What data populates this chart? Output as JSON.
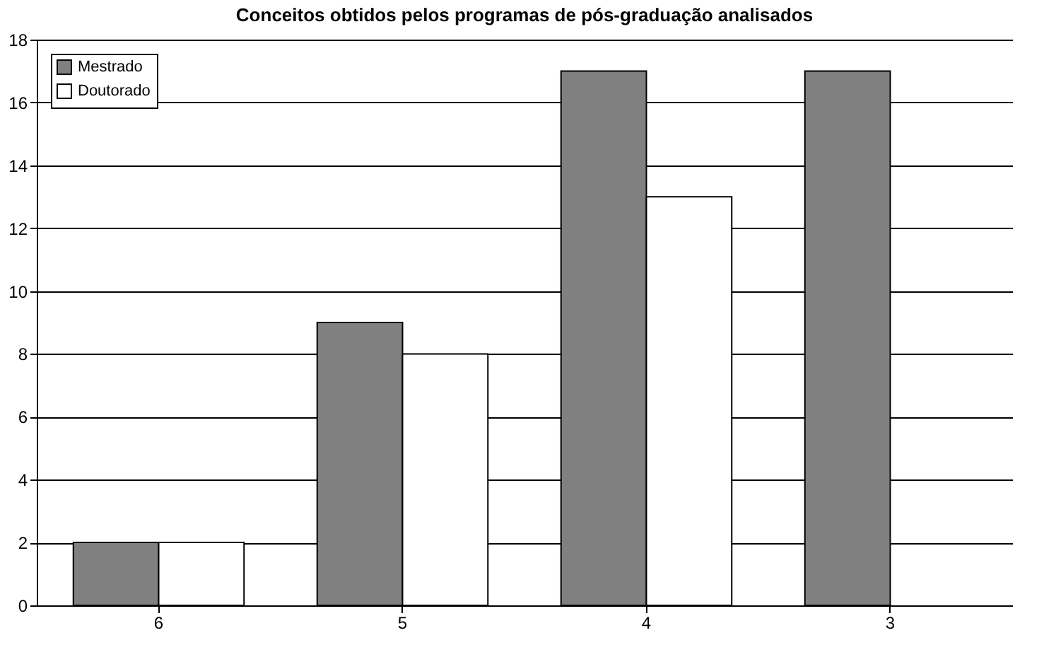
{
  "chart_data": {
    "type": "bar",
    "title": "Conceitos obtidos pelos programas de pós-graduação analisados",
    "categories": [
      "6",
      "5",
      "4",
      "3"
    ],
    "series": [
      {
        "name": "Mestrado",
        "color": "#808080",
        "values": [
          2,
          9,
          17,
          17
        ]
      },
      {
        "name": "Doutorado",
        "color": "#ffffff",
        "values": [
          2,
          8,
          13,
          null
        ]
      }
    ],
    "ylim": [
      0,
      18
    ],
    "yticks": [
      0,
      2,
      4,
      6,
      8,
      10,
      12,
      14,
      16,
      18
    ],
    "grid": "y",
    "legend": "top left"
  }
}
